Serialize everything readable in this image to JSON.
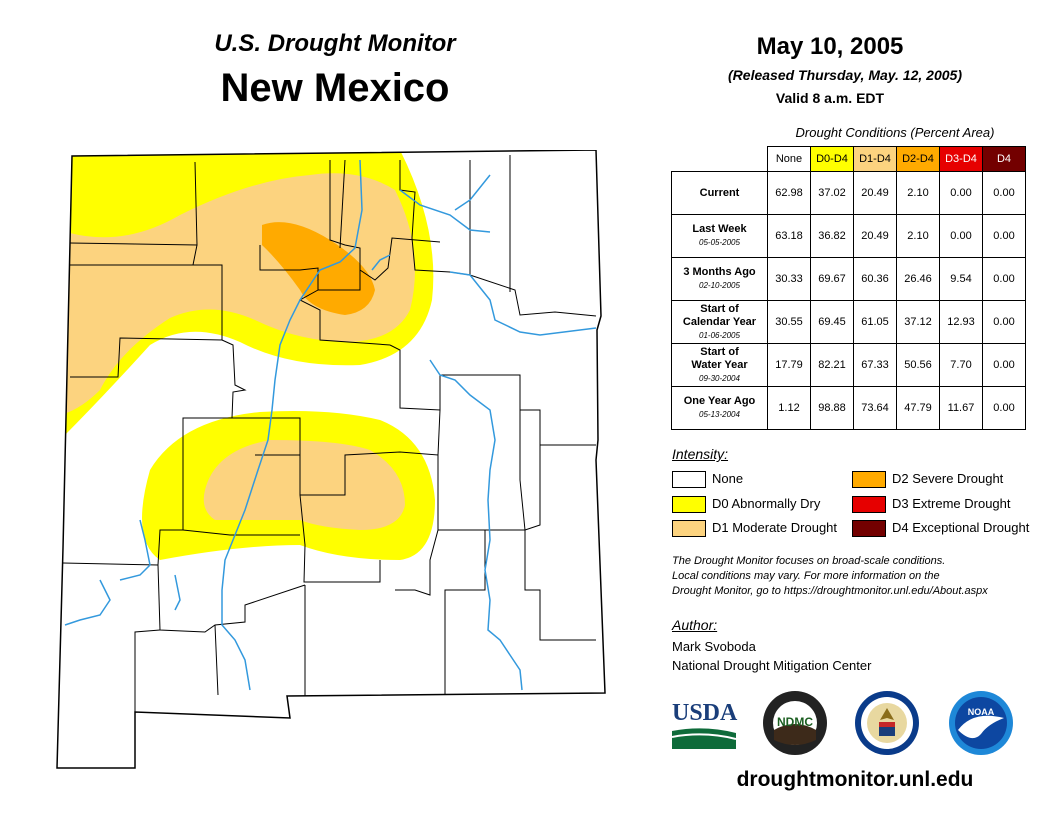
{
  "header": {
    "subtitle": "U.S. Drought Monitor",
    "state": "New Mexico",
    "date": "May 10, 2005",
    "released": "(Released Thursday, May. 12, 2005)",
    "valid": "Valid 8 a.m. EDT"
  },
  "table": {
    "title": "Drought Conditions (Percent Area)",
    "columns": [
      "None",
      "D0-D4",
      "D1-D4",
      "D2-D4",
      "D3-D4",
      "D4"
    ],
    "column_colors": [
      "#ffffff",
      "#ffff00",
      "#fcd37f",
      "#ffaa00",
      "#e60000",
      "#730000"
    ],
    "column_text_colors": [
      "#000000",
      "#000000",
      "#000000",
      "#000000",
      "#ffffff",
      "#ffffff"
    ],
    "rows": [
      {
        "label": "Current",
        "label2": "",
        "date": "",
        "values": [
          "62.98",
          "37.02",
          "20.49",
          "2.10",
          "0.00",
          "0.00"
        ]
      },
      {
        "label": "Last Week",
        "label2": "",
        "date": "05-05-2005",
        "values": [
          "63.18",
          "36.82",
          "20.49",
          "2.10",
          "0.00",
          "0.00"
        ]
      },
      {
        "label": "3 Months Ago",
        "label2": "",
        "date": "02-10-2005",
        "values": [
          "30.33",
          "69.67",
          "60.36",
          "26.46",
          "9.54",
          "0.00"
        ]
      },
      {
        "label": "Start of",
        "label2": "Calendar Year",
        "date": "01-06-2005",
        "values": [
          "30.55",
          "69.45",
          "61.05",
          "37.12",
          "12.93",
          "0.00"
        ]
      },
      {
        "label": "Start of",
        "label2": "Water Year",
        "date": "09-30-2004",
        "values": [
          "17.79",
          "82.21",
          "67.33",
          "50.56",
          "7.70",
          "0.00"
        ]
      },
      {
        "label": "One Year Ago",
        "label2": "",
        "date": "05-13-2004",
        "values": [
          "1.12",
          "98.88",
          "73.64",
          "47.79",
          "11.67",
          "0.00"
        ]
      }
    ]
  },
  "legend": {
    "title": "Intensity:",
    "items": [
      {
        "label": "None",
        "color": "#ffffff"
      },
      {
        "label": "D0 Abnormally Dry",
        "color": "#ffff00"
      },
      {
        "label": "D1 Moderate Drought",
        "color": "#fcd37f"
      },
      {
        "label": "D2 Severe Drought",
        "color": "#ffaa00"
      },
      {
        "label": "D3 Extreme Drought",
        "color": "#e60000"
      },
      {
        "label": "D4 Exceptional Drought",
        "color": "#730000"
      }
    ]
  },
  "note": {
    "line1": "The Drought Monitor focuses on broad-scale conditions.",
    "line2": "Local conditions may vary. For more information on the",
    "line3": "Drought Monitor, go to https://droughtmonitor.unl.edu/About.aspx"
  },
  "author": {
    "title": "Author:",
    "name": "Mark Svoboda",
    "org": "National Drought Mitigation Center"
  },
  "logos": {
    "usda": "USDA",
    "ndmc": "NDMC",
    "noaa": "NOAA"
  },
  "website": "droughtmonitor.unl.edu",
  "colors": {
    "river": "#3399dd",
    "county_line": "#000000"
  }
}
